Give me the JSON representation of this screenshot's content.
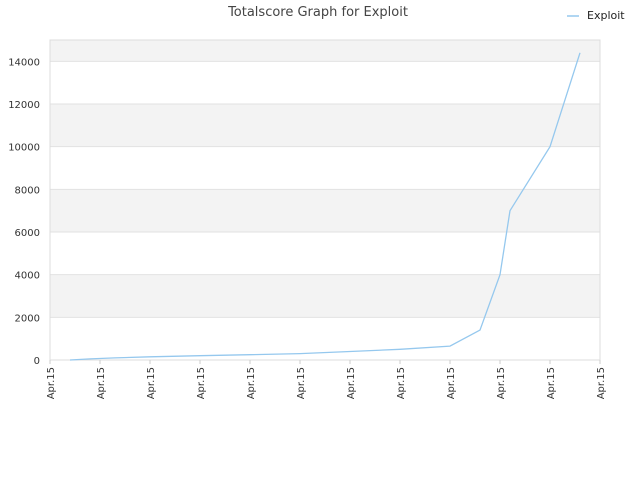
{
  "chart_data": {
    "type": "line",
    "title": "Totalscore Graph for Exploit",
    "xlabel": "",
    "ylabel": "",
    "legend_position": "top-right",
    "grid": true,
    "ylim": [
      0,
      15000
    ],
    "y_ticks": [
      0,
      2000,
      4000,
      6000,
      8000,
      10000,
      12000,
      14000
    ],
    "x_tick_labels": [
      "Apr.15",
      "Apr.15",
      "Apr.15",
      "Apr.15",
      "Apr.15",
      "Apr.15",
      "Apr.15",
      "Apr.15",
      "Apr.15",
      "Apr.15",
      "Apr.15",
      "Apr.15"
    ],
    "series": [
      {
        "name": "Exploit",
        "color": "#95c8ee",
        "x": [
          0.4,
          0.8,
          1.3,
          2.0,
          3.0,
          4.0,
          5.0,
          6.0,
          7.0,
          8.0,
          8.6,
          9.0,
          9.2,
          10.0,
          10.6
        ],
        "values": [
          0,
          50,
          100,
          150,
          200,
          250,
          300,
          400,
          500,
          650,
          1400,
          4000,
          7000,
          10000,
          14400
        ]
      }
    ]
  }
}
